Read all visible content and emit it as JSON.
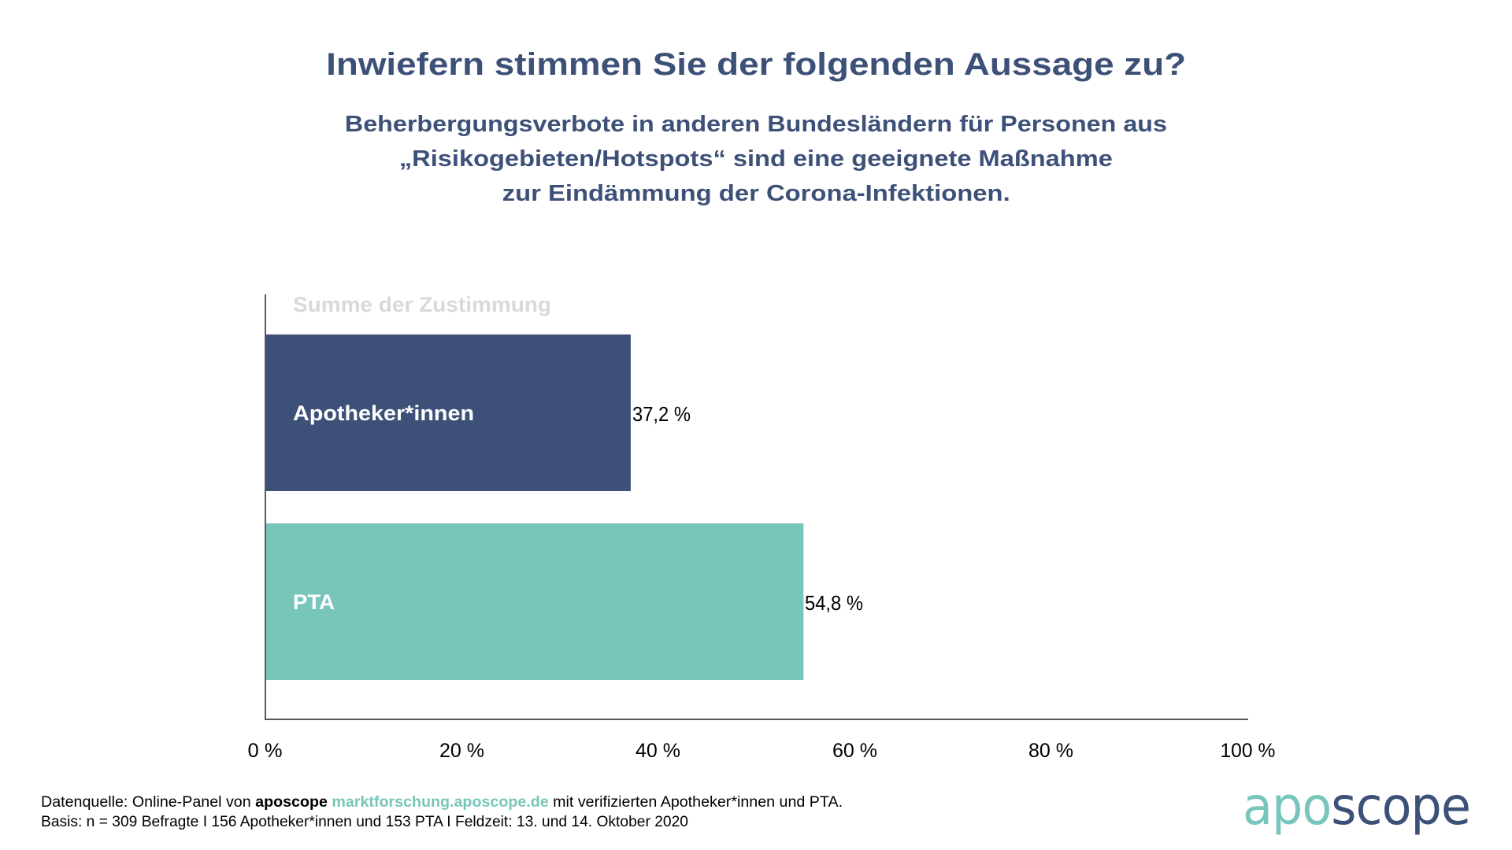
{
  "colors": {
    "title": "#3D5078",
    "navy": "#3D5078",
    "teal": "#78C6BB",
    "group_label": "#D9D9D9",
    "axis": "#595959"
  },
  "header": {
    "title": "Inwiefern stimmen Sie der folgenden Aussage zu?",
    "subtitle_lines": [
      "Beherbergungsverbote in anderen Bundesländern für Personen aus",
      "„Risikogebieten/Hotspots“ sind eine geeignete Maßnahme",
      "zur Eindämmung der Corona-Infektionen."
    ]
  },
  "chart_data": {
    "type": "bar",
    "orientation": "horizontal",
    "title": "Inwiefern stimmen Sie der folgenden Aussage zu?",
    "group_label": "Summe der Zustimmung",
    "categories": [
      "Apotheker*innen",
      "PTA"
    ],
    "values": [
      37.2,
      54.8
    ],
    "value_labels": [
      "37,2 %",
      "54,8 %"
    ],
    "bar_colors": [
      "#3D5078",
      "#78C6BB"
    ],
    "xlabel": "",
    "ylabel": "",
    "xlim": [
      0,
      100
    ],
    "x_ticks": [
      0,
      20,
      40,
      60,
      80,
      100
    ],
    "x_tick_labels": [
      "0 %",
      "20 %",
      "40 %",
      "60 %",
      "80 %",
      "100 %"
    ],
    "grid": false,
    "legend": "none"
  },
  "footer": {
    "line1_prefix": "Datenquelle: Online-Panel von ",
    "line1_brand": "aposcope",
    "line1_link": "marktforschung.aposcope.de",
    "line1_suffix": " mit verifizierten Apotheker*innen und PTA.",
    "line2": "Basis: n = 309 Befragte I 156 Apotheker*innen und 153 PTA I Feldzeit: 13. und 14. Oktober 2020"
  },
  "logo": {
    "part1": "apo",
    "part2": "scope",
    "color1": "#78C6BB",
    "color2": "#3D5078"
  }
}
